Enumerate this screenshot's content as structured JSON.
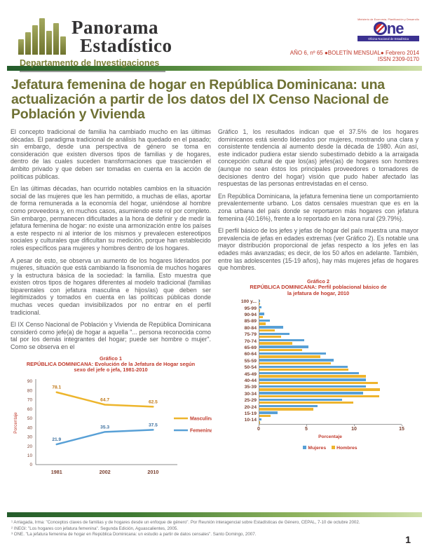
{
  "header": {
    "brand_line1": "Panorama",
    "brand_line2": "Estadístico",
    "brand_subtitle": "Departamento de Investigaciones",
    "one_logo": {
      "ministry_text": "Ministerio de Economía, Planificación y Desarrollo",
      "name_suffix": "ne",
      "tagline": "Oficina Nacional de Estadística"
    },
    "issue_line": "AÑO 6, nº 65  ●BOLETÍN MENSUAL● Febrero 2014",
    "issn": "ISSN 2309-0170"
  },
  "title": "Jefatura femenina de hogar en República Dominicana: una actualización a partir de los datos del IX Censo Nacional de Población y Vivienda",
  "columns": {
    "left_paragraphs": [
      "El concepto tradicional de familia ha cambiado mucho en las últimas décadas. El paradigma tradicional de análisis ha quedado en el pasado; sin embargo, desde una perspectiva de género se toma en consideración que existen diversos tipos de familias y de hogares, dentro de las cuales suceden transformaciones que trascienden el ámbito privado y que deben ser tomadas en cuenta en la acción de políticas públicas.",
      "En las últimas décadas, han ocurrido notables cambios en la situación social de las mujeres que les han permitido, a muchas de ellas, aportar de forma remunerada a la economía del hogar, uniéndose al hombre como proveedora y, en muchos casos, asumiendo este rol por completo.  Sin embargo, permanecen dificultades a la hora de definir y de medir la jefatura femenina de hogar: no existe una armonización entre los países a este respecto ni al interior de los mismos y prevalecen estereotipos sociales y culturales que dificultan su medición, porque han establecido roles específicos para mujeres y hombres dentro de los hogares.",
      "A pesar de esto, se observa un aumento de los hogares liderados por mujeres, situación que está cambiando la fisonomía de muchos hogares y la estructura básica de la sociedad: la familia. Esto muestra que existen otros tipos de hogares diferentes al modelo tradicional (familias biparentales con jefatura masculina e hijos/as) que deben ser legitimizados y tomados en cuenta en las políticas públicas donde muchas veces quedan invisibilizados por no entrar en el perfil tradicional.",
      "El IX Censo Nacional de Población y Vivienda de República Dominicana consideró como jefe(a) de hogar a aquella \"... persona reconocida como tal por los demás integrantes del hogar; puede ser hombre o mujer\". Como se observa en el"
    ],
    "right_paragraphs": [
      "Gráfico 1, los resultados indican que el 37.5% de los hogares dominicanos está siendo liderados por mujeres, mostrando una clara y consistente tendencia al aumento desde la década de 1980. Aún así, este indicador pudiera estar siendo subestimado debido a la arraigada concepción cultural de que los(as) jefes(as) de hogares son hombres (aunque no sean éstos los principales proveedores o tomadores de decisiones dentro del hogar) visión que pudo haber afectado las respuestas de las personas entrevistadas en el censo.",
      "En República Dominicana, la jefatura femenina tiene un comportamiento prevalentemente urbano. Los datos censales muestran que es en la zona urbana del país donde se reportaron más hogares con jefatura femenina (40.16%), frente a lo reportado en la zona rural (29.79%).",
      "El perfil básico de los jefes y jefas de hogar del país muestra una mayor prevalencia de jefas en edades extremas (ver Gráfico 2). Es notable una mayor distribución proporcional de jefas respecto a los jefes en las edades más avanzadas; es decir, de los 50 años en adelante. También, entre las adolescentes (15-19 años), hay más mujeres jefas de hogares que hombres."
    ]
  },
  "chart_data": [
    {
      "type": "line",
      "title": "Gráfico 1",
      "subtitle": "REPÚBLICA DOMINICANA: Evolución de la Jefatura de Hogar según sexo del jefe o jefa, 1981-2010",
      "categories": [
        "1981",
        "2002",
        "2010"
      ],
      "series": [
        {
          "name": "Masculina",
          "color": "#edb52c",
          "label_color": "#c07818",
          "values": [
            78.1,
            64.7,
            62.5
          ]
        },
        {
          "name": "Femenina",
          "color": "#58a0d6",
          "label_color": "#3a6e9e",
          "values": [
            21.9,
            35.3,
            37.5
          ]
        }
      ],
      "ylabel": "Porcentaje",
      "ylim": [
        0,
        90
      ],
      "ytick_step": 10,
      "legend_position": "right",
      "grid": false
    },
    {
      "type": "bar",
      "orientation": "horizontal",
      "title": "Gráfico 2",
      "subtitle": "REPÚBLICA DOMINICANA: Perfil poblacional básico de la jefatura de hogar, 2010",
      "categories": [
        "100 y...",
        "95-99",
        "90-94",
        "85-89",
        "80-84",
        "75-79",
        "70-74",
        "65-69",
        "60-64",
        "55-59",
        "50-54",
        "45-49",
        "40-44",
        "35-39",
        "30-34",
        "25-29",
        "20-24",
        "15-19",
        "10-14"
      ],
      "series": [
        {
          "name": "Mujeres",
          "color": "#58a0d6",
          "values": [
            0.1,
            0.2,
            0.5,
            1.1,
            2.5,
            3.2,
            4.7,
            5.2,
            7.0,
            7.8,
            9.3,
            10.5,
            11.2,
            11.2,
            10.9,
            8.7,
            6.1,
            1.9,
            0.2
          ]
        },
        {
          "name": "Hombres",
          "color": "#eeb42d",
          "values": [
            0.1,
            0.1,
            0.4,
            0.7,
            1.6,
            2.3,
            3.5,
            4.5,
            6.4,
            7.5,
            9.4,
            11.2,
            12.5,
            12.7,
            12.6,
            9.9,
            5.7,
            1.2,
            0.1
          ]
        }
      ],
      "xlabel": "Porcentaje",
      "xlim": [
        0,
        15
      ],
      "xticks": [
        0,
        5,
        10,
        15
      ],
      "legend_position": "bottom",
      "grid": false
    }
  ],
  "footnotes": [
    "¹ Arriagada, Irma: \"Conceptos claves de familias y de hogares desde  un enfoque de género\".  Por Reunión interagencial sobre Estadísticas de Género, CEPAL, 7-10 de octubre 2002.",
    "² INEGI: \"Los hogares con jefatura femenina\". Segunda Edición, Aguascalientes, 2005.",
    "³ ONE. \"La jefatura femenina de hogar en República Dominicana: un estudio a partir de datos censales\". Santo Domingo, 2007."
  ],
  "page_number": "1",
  "colors": {
    "title_olive": "#6e7033",
    "accent_red": "#c0392b",
    "body_gray": "#565759",
    "series_blue": "#58a0d6",
    "series_gold": "#edb52c",
    "rule_green_dark": "#245c2b",
    "rule_green_light": "#cfe0a8",
    "one_blue": "#3b3191"
  }
}
